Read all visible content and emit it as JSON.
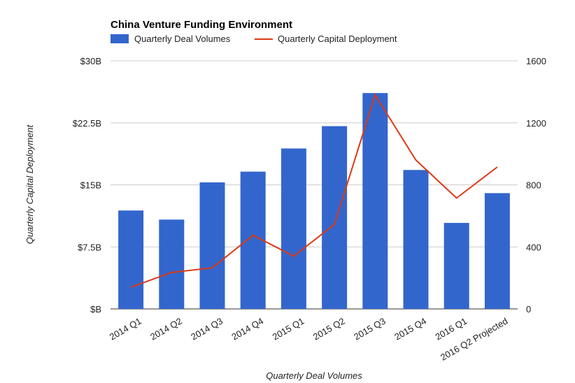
{
  "chart_data": {
    "type": "bar",
    "title": "China Venture Funding Environment",
    "categories": [
      "2014 Q1",
      "2014 Q2",
      "2014 Q3",
      "2014 Q4",
      "2015 Q1",
      "2015 Q2",
      "2015 Q3",
      "2015 Q4",
      "2016 Q1",
      "2016 Q2 Projected"
    ],
    "series": [
      {
        "name": "Quarterly Deal Volumes",
        "type": "bar",
        "axis": "left",
        "color": "#3366cc",
        "values": [
          11.9,
          10.8,
          15.3,
          16.6,
          19.4,
          22.1,
          26.1,
          16.8,
          10.4,
          14.0
        ]
      },
      {
        "name": "Quarterly Capital Deployment",
        "type": "line",
        "axis": "right",
        "color": "#dc3912",
        "values": [
          140,
          235,
          265,
          475,
          340,
          545,
          1380,
          960,
          715,
          915
        ]
      }
    ],
    "y_left": {
      "label": "Quarterly Capital Deployment",
      "range": [
        0,
        30
      ],
      "ticks": [
        0,
        7.5,
        15,
        22.5,
        30
      ],
      "tick_labels": [
        "$B",
        "$7.5B",
        "$15B",
        "$22.5B",
        "$30B"
      ]
    },
    "y_right": {
      "range": [
        0,
        1600
      ],
      "ticks": [
        0,
        400,
        800,
        1200,
        1600
      ],
      "tick_labels": [
        "0",
        "400",
        "800",
        "1200",
        "1600"
      ]
    },
    "xlabel": "Quarterly Deal Volumes",
    "grid": true,
    "legend_position": "top-left"
  }
}
